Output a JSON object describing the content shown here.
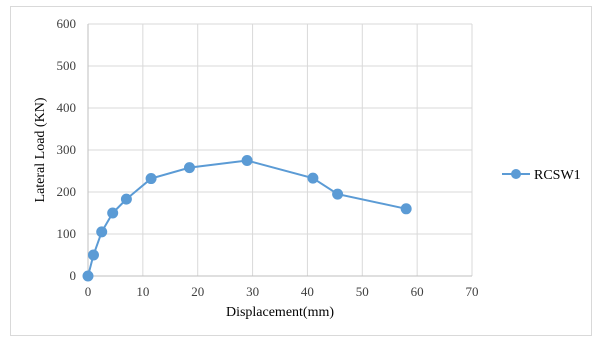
{
  "chart_data": {
    "type": "line",
    "title": "",
    "xlabel": "Displacement(mm)",
    "ylabel": "Lateral Load (KN)",
    "xlim": [
      0,
      70
    ],
    "ylim": [
      0,
      600
    ],
    "xticks": [
      0,
      10,
      20,
      30,
      40,
      50,
      60,
      70
    ],
    "yticks": [
      0,
      100,
      200,
      300,
      400,
      500,
      600
    ],
    "grid": true,
    "legend_position": "right",
    "series": [
      {
        "name": "RCSW1",
        "color": "#5b9bd5",
        "marker": "circle",
        "x": [
          0,
          1,
          2.5,
          4.5,
          7,
          11.5,
          18.5,
          29,
          41,
          45.5,
          58
        ],
        "y": [
          0,
          50,
          105,
          150,
          183,
          232,
          258,
          275,
          233,
          195,
          160
        ]
      }
    ]
  }
}
